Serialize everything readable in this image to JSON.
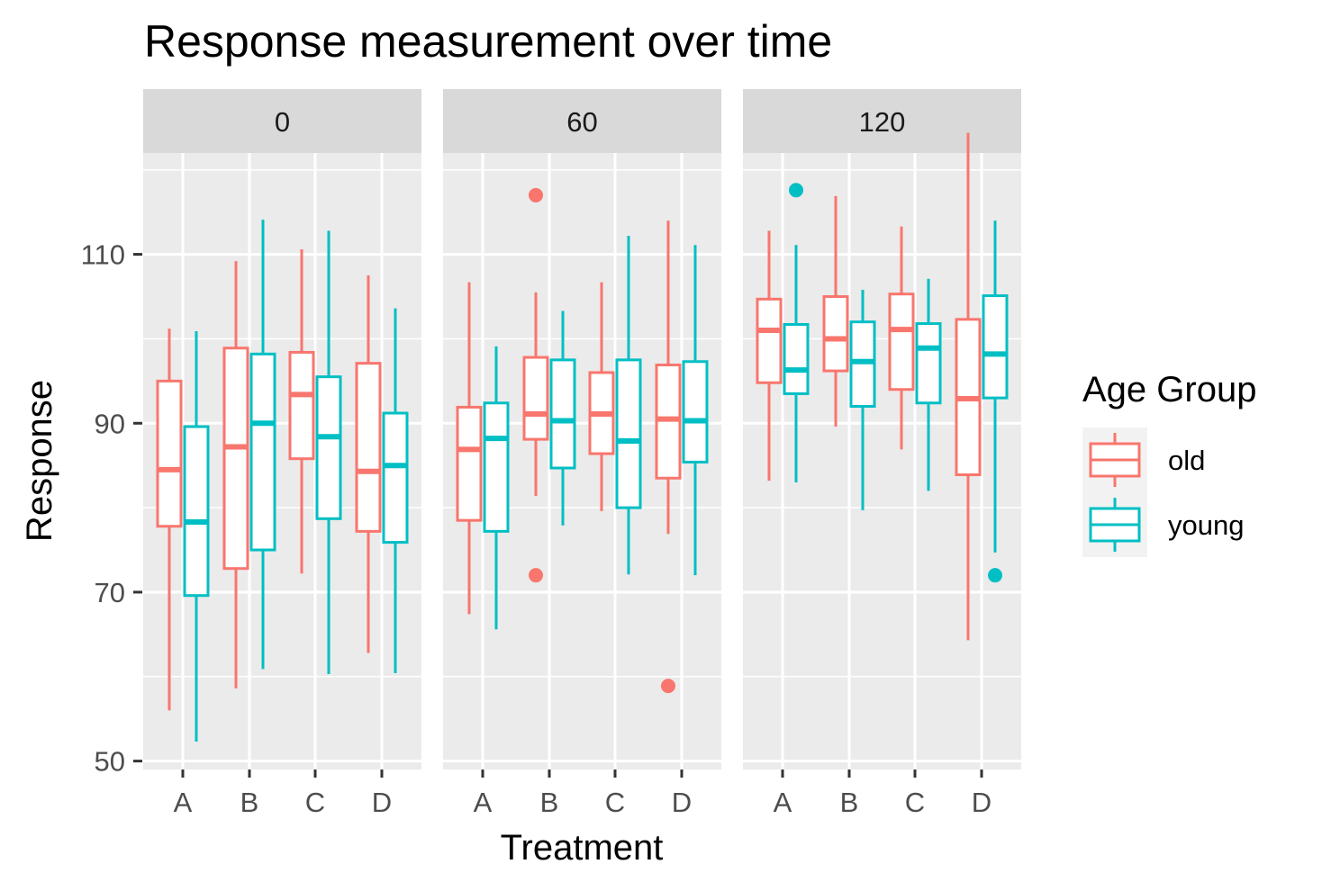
{
  "chart_data": {
    "type": "boxplot",
    "title": "Response measurement over time",
    "xlabel": "Treatment",
    "ylabel": "Response",
    "ylim": [
      49,
      122
    ],
    "y_ticks": [
      50,
      70,
      90,
      110
    ],
    "categories": [
      "A",
      "B",
      "C",
      "D"
    ],
    "facets": [
      "0",
      "60",
      "120"
    ],
    "legend": {
      "title": "Age Group",
      "position": "right",
      "entries": [
        {
          "name": "old",
          "color": "#F8766D"
        },
        {
          "name": "young",
          "color": "#00BFC4"
        }
      ]
    },
    "panels": [
      {
        "facet": "0",
        "series": [
          {
            "name": "old",
            "boxes": [
              {
                "category": "A",
                "lower_whisker": 56,
                "q1": 77.8,
                "median": 84.5,
                "q3": 95,
                "upper_whisker": 101.2,
                "outliers": []
              },
              {
                "category": "B",
                "lower_whisker": 58.6,
                "q1": 72.8,
                "median": 87.2,
                "q3": 98.9,
                "upper_whisker": 109.2,
                "outliers": []
              },
              {
                "category": "C",
                "lower_whisker": 72.2,
                "q1": 85.8,
                "median": 93.4,
                "q3": 98.4,
                "upper_whisker": 110.6,
                "outliers": []
              },
              {
                "category": "D",
                "lower_whisker": 62.8,
                "q1": 77.2,
                "median": 84.3,
                "q3": 97.1,
                "upper_whisker": 107.5,
                "outliers": []
              }
            ]
          },
          {
            "name": "young",
            "boxes": [
              {
                "category": "A",
                "lower_whisker": 52.3,
                "q1": 69.6,
                "median": 78.3,
                "q3": 89.6,
                "upper_whisker": 100.9,
                "outliers": []
              },
              {
                "category": "B",
                "lower_whisker": 60.9,
                "q1": 75,
                "median": 90,
                "q3": 98.2,
                "upper_whisker": 114.1,
                "outliers": []
              },
              {
                "category": "C",
                "lower_whisker": 60.3,
                "q1": 78.7,
                "median": 88.4,
                "q3": 95.5,
                "upper_whisker": 112.8,
                "outliers": []
              },
              {
                "category": "D",
                "lower_whisker": 60.4,
                "q1": 75.9,
                "median": 85,
                "q3": 91.2,
                "upper_whisker": 103.6,
                "outliers": []
              }
            ]
          }
        ]
      },
      {
        "facet": "60",
        "series": [
          {
            "name": "old",
            "boxes": [
              {
                "category": "A",
                "lower_whisker": 67.4,
                "q1": 78.5,
                "median": 86.9,
                "q3": 91.9,
                "upper_whisker": 106.7,
                "outliers": []
              },
              {
                "category": "B",
                "lower_whisker": 81.4,
                "q1": 88.1,
                "median": 91.1,
                "q3": 97.8,
                "upper_whisker": 105.5,
                "outliers": [
                  117,
                  72
                ]
              },
              {
                "category": "C",
                "lower_whisker": 79.6,
                "q1": 86.4,
                "median": 91.1,
                "q3": 96,
                "upper_whisker": 106.7,
                "outliers": []
              },
              {
                "category": "D",
                "lower_whisker": 76.9,
                "q1": 83.5,
                "median": 90.5,
                "q3": 96.9,
                "upper_whisker": 114,
                "outliers": [
                  58.9
                ]
              }
            ]
          },
          {
            "name": "young",
            "boxes": [
              {
                "category": "A",
                "lower_whisker": 65.6,
                "q1": 77.2,
                "median": 88.2,
                "q3": 92.4,
                "upper_whisker": 99.1,
                "outliers": []
              },
              {
                "category": "B",
                "lower_whisker": 77.9,
                "q1": 84.7,
                "median": 90.3,
                "q3": 97.5,
                "upper_whisker": 103.3,
                "outliers": []
              },
              {
                "category": "C",
                "lower_whisker": 72.1,
                "q1": 80,
                "median": 87.9,
                "q3": 97.5,
                "upper_whisker": 112.2,
                "outliers": []
              },
              {
                "category": "D",
                "lower_whisker": 72,
                "q1": 85.4,
                "median": 90.3,
                "q3": 97.3,
                "upper_whisker": 111.1,
                "outliers": []
              }
            ]
          }
        ]
      },
      {
        "facet": "120",
        "series": [
          {
            "name": "old",
            "boxes": [
              {
                "category": "A",
                "lower_whisker": 83.2,
                "q1": 94.8,
                "median": 101,
                "q3": 104.7,
                "upper_whisker": 112.8,
                "outliers": []
              },
              {
                "category": "B",
                "lower_whisker": 89.6,
                "q1": 96.2,
                "median": 100,
                "q3": 105,
                "upper_whisker": 116.9,
                "outliers": []
              },
              {
                "category": "C",
                "lower_whisker": 86.9,
                "q1": 94,
                "median": 101.1,
                "q3": 105.3,
                "upper_whisker": 113.3,
                "outliers": []
              },
              {
                "category": "D",
                "lower_whisker": 64.3,
                "q1": 83.9,
                "median": 92.9,
                "q3": 102.3,
                "upper_whisker": 124.4,
                "outliers": []
              }
            ]
          },
          {
            "name": "young",
            "boxes": [
              {
                "category": "A",
                "lower_whisker": 83,
                "q1": 93.5,
                "median": 96.3,
                "q3": 101.7,
                "upper_whisker": 111.1,
                "outliers": [
                  117.6
                ]
              },
              {
                "category": "B",
                "lower_whisker": 79.7,
                "q1": 92,
                "median": 97.3,
                "q3": 102,
                "upper_whisker": 105.8,
                "outliers": []
              },
              {
                "category": "C",
                "lower_whisker": 82,
                "q1": 92.4,
                "median": 98.9,
                "q3": 101.8,
                "upper_whisker": 107.1,
                "outliers": []
              },
              {
                "category": "D",
                "lower_whisker": 74.7,
                "q1": 93,
                "median": 98.2,
                "q3": 105.1,
                "upper_whisker": 114,
                "outliers": [
                  72
                ]
              }
            ]
          }
        ]
      }
    ]
  }
}
